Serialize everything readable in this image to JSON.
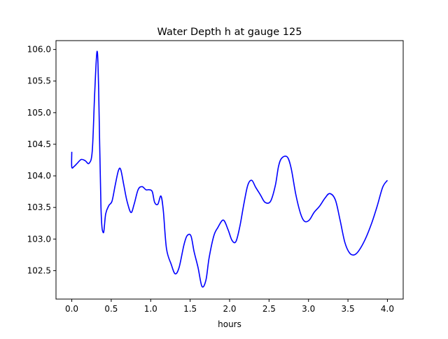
{
  "chart_data": {
    "type": "line",
    "title": "Water Depth h at gauge 125",
    "xlabel": "hours",
    "ylabel": "",
    "xlim": [
      -0.2,
      4.2
    ],
    "ylim": [
      102.05,
      106.14
    ],
    "xticks": [
      0.0,
      0.5,
      1.0,
      1.5,
      2.0,
      2.5,
      3.0,
      3.5,
      4.0
    ],
    "xtick_labels": [
      "0.0",
      "0.5",
      "1.0",
      "1.5",
      "2.0",
      "2.5",
      "3.0",
      "3.5",
      "4.0"
    ],
    "yticks": [
      102.5,
      103.0,
      103.5,
      104.0,
      104.5,
      105.0,
      105.5,
      106.0
    ],
    "ytick_labels": [
      "102.5",
      "103.0",
      "103.5",
      "104.0",
      "104.5",
      "105.0",
      "105.5",
      "106.0"
    ],
    "grid": false,
    "legend": "none",
    "series": [
      {
        "color": "#0000ff",
        "points": [
          [
            0.0,
            104.38
          ],
          [
            0.0,
            104.14
          ],
          [
            0.03,
            104.15
          ],
          [
            0.07,
            104.2
          ],
          [
            0.12,
            104.26
          ],
          [
            0.17,
            104.24
          ],
          [
            0.22,
            104.2
          ],
          [
            0.26,
            104.4
          ],
          [
            0.29,
            105.3
          ],
          [
            0.32,
            105.97
          ],
          [
            0.34,
            105.4
          ],
          [
            0.37,
            103.5
          ],
          [
            0.4,
            103.1
          ],
          [
            0.43,
            103.4
          ],
          [
            0.47,
            103.53
          ],
          [
            0.51,
            103.6
          ],
          [
            0.55,
            103.85
          ],
          [
            0.59,
            104.08
          ],
          [
            0.62,
            104.1
          ],
          [
            0.66,
            103.85
          ],
          [
            0.7,
            103.6
          ],
          [
            0.75,
            103.42
          ],
          [
            0.79,
            103.55
          ],
          [
            0.84,
            103.78
          ],
          [
            0.89,
            103.83
          ],
          [
            0.94,
            103.78
          ],
          [
            0.98,
            103.78
          ],
          [
            1.02,
            103.75
          ],
          [
            1.05,
            103.58
          ],
          [
            1.09,
            103.55
          ],
          [
            1.13,
            103.68
          ],
          [
            1.16,
            103.45
          ],
          [
            1.2,
            102.85
          ],
          [
            1.26,
            102.6
          ],
          [
            1.31,
            102.45
          ],
          [
            1.36,
            102.55
          ],
          [
            1.42,
            102.9
          ],
          [
            1.46,
            103.05
          ],
          [
            1.51,
            103.05
          ],
          [
            1.55,
            102.8
          ],
          [
            1.6,
            102.55
          ],
          [
            1.65,
            102.25
          ],
          [
            1.7,
            102.35
          ],
          [
            1.74,
            102.7
          ],
          [
            1.8,
            103.05
          ],
          [
            1.85,
            103.18
          ],
          [
            1.92,
            103.3
          ],
          [
            1.98,
            103.15
          ],
          [
            2.03,
            102.98
          ],
          [
            2.08,
            102.96
          ],
          [
            2.13,
            103.2
          ],
          [
            2.18,
            103.55
          ],
          [
            2.23,
            103.85
          ],
          [
            2.28,
            103.93
          ],
          [
            2.33,
            103.82
          ],
          [
            2.39,
            103.7
          ],
          [
            2.45,
            103.58
          ],
          [
            2.52,
            103.6
          ],
          [
            2.58,
            103.85
          ],
          [
            2.62,
            104.15
          ],
          [
            2.66,
            104.28
          ],
          [
            2.73,
            104.3
          ],
          [
            2.78,
            104.12
          ],
          [
            2.84,
            103.7
          ],
          [
            2.9,
            103.4
          ],
          [
            2.95,
            103.28
          ],
          [
            3.01,
            103.3
          ],
          [
            3.07,
            103.42
          ],
          [
            3.14,
            103.52
          ],
          [
            3.21,
            103.65
          ],
          [
            3.27,
            103.72
          ],
          [
            3.34,
            103.62
          ],
          [
            3.4,
            103.3
          ],
          [
            3.46,
            102.95
          ],
          [
            3.52,
            102.78
          ],
          [
            3.58,
            102.75
          ],
          [
            3.64,
            102.82
          ],
          [
            3.72,
            103.0
          ],
          [
            3.8,
            103.25
          ],
          [
            3.87,
            103.52
          ],
          [
            3.94,
            103.82
          ],
          [
            4.0,
            103.93
          ]
        ]
      }
    ]
  }
}
